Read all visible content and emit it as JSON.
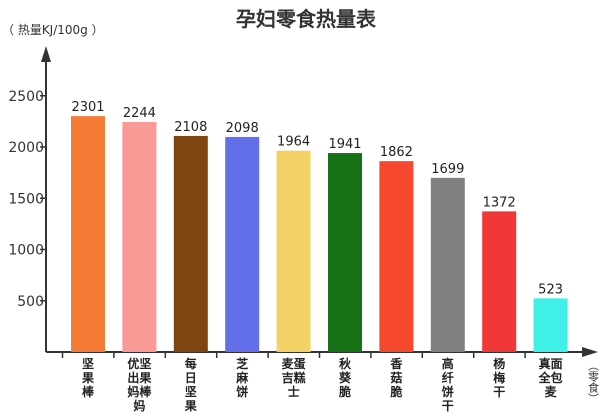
{
  "chart_data": {
    "type": "bar",
    "title": "孕妇零食热量表",
    "ylabel": "（ 热量KJ/100g ）",
    "xlabel": "（零食）",
    "ylim": [
      0,
      2800
    ],
    "yticks": [
      500,
      1000,
      1500,
      2000,
      2500
    ],
    "grid": false,
    "categories": [
      [
        "坚",
        "果",
        "棒"
      ],
      [
        "优坚",
        "出果",
        "妈棒",
        "妈"
      ],
      [
        "每",
        "日",
        "坚",
        "果"
      ],
      [
        "芝",
        "麻",
        "饼"
      ],
      [
        "麦蛋",
        "吉糕",
        "士"
      ],
      [
        "秋",
        "葵",
        "脆"
      ],
      [
        "香",
        "菇",
        "脆"
      ],
      [
        "高",
        "纤",
        "饼",
        "干"
      ],
      [
        "杨",
        "梅",
        "干"
      ],
      [
        "真面",
        "全包",
        "麦"
      ]
    ],
    "values": [
      2301,
      2244,
      2108,
      2098,
      1964,
      1941,
      1862,
      1699,
      1372,
      523
    ],
    "colors": [
      "#F57A36",
      "#F99A97",
      "#7E4512",
      "#636EEA",
      "#F4D164",
      "#177217",
      "#F6482E",
      "#808080",
      "#F03838",
      "#3EF0E8"
    ]
  }
}
